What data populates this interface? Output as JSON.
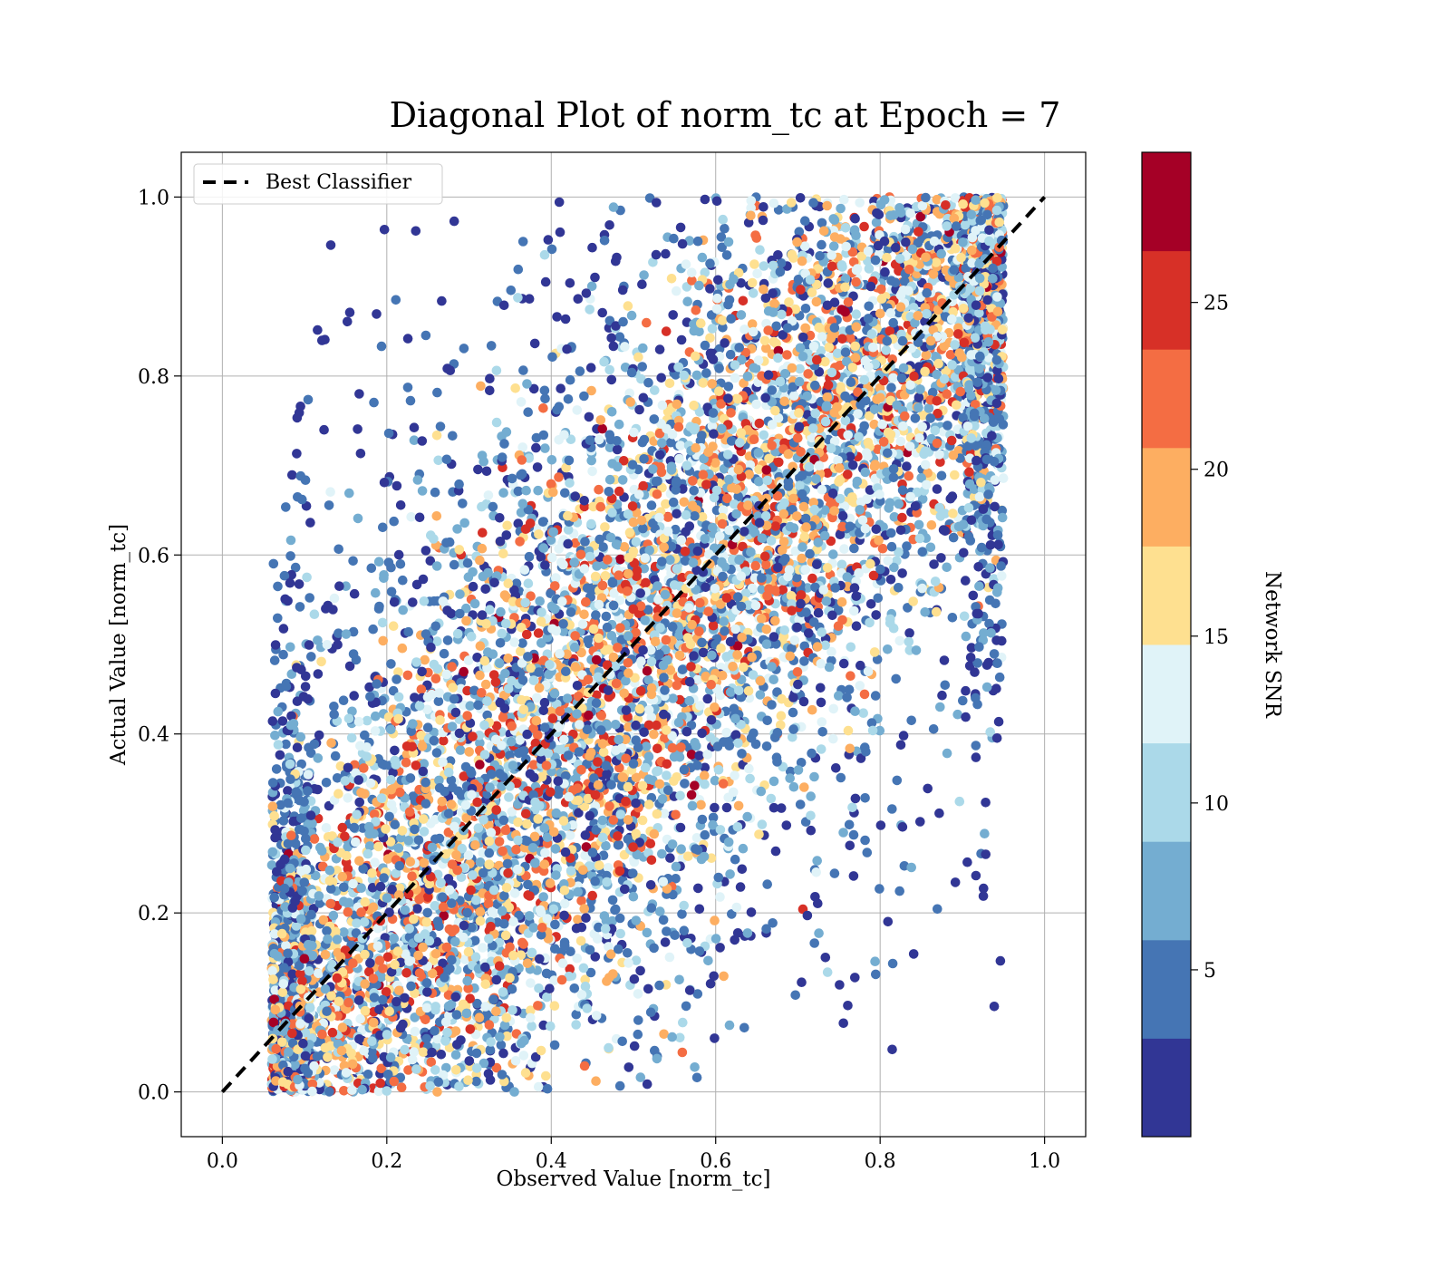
{
  "chart_data": {
    "type": "scatter",
    "title": "Diagonal Plot of norm_tc at Epoch = 7",
    "xlabel": "Observed Value [norm_tc]",
    "ylabel": "Actual Value [norm_tc]",
    "xlim": [
      -0.05,
      1.05
    ],
    "ylim": [
      -0.05,
      1.05
    ],
    "x_ticks": [
      "0.0",
      "0.2",
      "0.4",
      "0.6",
      "0.8",
      "1.0"
    ],
    "y_ticks": [
      "0.0",
      "0.2",
      "0.4",
      "0.6",
      "0.8",
      "1.0"
    ],
    "grid": true,
    "legend": {
      "position": "top-left",
      "entries": [
        "Best Classifier"
      ]
    },
    "reference_line": {
      "name": "Best Classifier",
      "style": "dashed",
      "color": "#000000",
      "x": [
        0,
        1
      ],
      "y": [
        0,
        1
      ]
    },
    "colorbar": {
      "label": "Network SNR",
      "range": [
        0,
        29.5
      ],
      "ticks": [
        "5",
        "10",
        "15",
        "20",
        "25"
      ],
      "bins": 10,
      "colors": [
        "#313695",
        "#4575b4",
        "#74add1",
        "#abd9e9",
        "#e0f3f8",
        "#fee090",
        "#fdae61",
        "#f46d43",
        "#d73027",
        "#a50026"
      ]
    },
    "points_description_note": "",
    "series_points": []
  }
}
